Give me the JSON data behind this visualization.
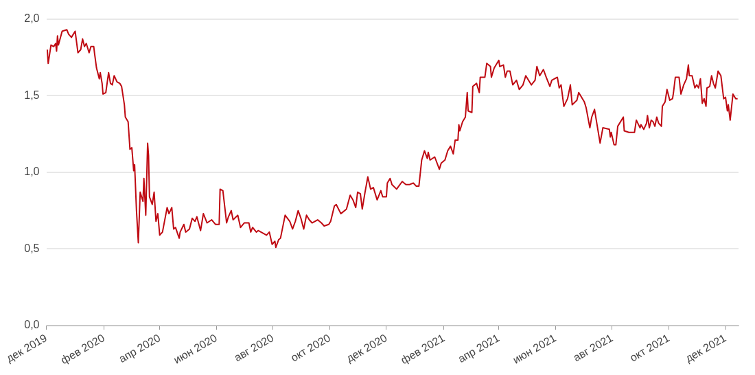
{
  "chart_data": {
    "type": "line",
    "xlim": [
      "2019-12-01",
      "2021-12-15"
    ],
    "xticks": [
      {
        "value": "2019-12-01",
        "label": "дек 2019"
      },
      {
        "value": "2020-02-01",
        "label": "фев 2020"
      },
      {
        "value": "2020-04-01",
        "label": "апр 2020"
      },
      {
        "value": "2020-06-01",
        "label": "июн 2020"
      },
      {
        "value": "2020-08-01",
        "label": "авг 2020"
      },
      {
        "value": "2020-10-01",
        "label": "окт 2020"
      },
      {
        "value": "2020-12-01",
        "label": "дек 2020"
      },
      {
        "value": "2021-02-01",
        "label": "фев 2021"
      },
      {
        "value": "2021-04-01",
        "label": "апр 2021"
      },
      {
        "value": "2021-06-01",
        "label": "июн 2021"
      },
      {
        "value": "2021-08-01",
        "label": "авг 2021"
      },
      {
        "value": "2021-10-01",
        "label": "окт 2021"
      },
      {
        "value": "2021-12-01",
        "label": "дек 2021"
      }
    ],
    "ylim": [
      0,
      2
    ],
    "yticks": [
      {
        "value": 0,
        "label": "0,0"
      },
      {
        "value": 0.5,
        "label": "0,5"
      },
      {
        "value": 1,
        "label": "1,0"
      },
      {
        "value": 1.5,
        "label": "1,5"
      },
      {
        "value": 2,
        "label": "2,0"
      }
    ],
    "grid": "y",
    "legend": false,
    "marker": "none",
    "line_style": "solid",
    "x": [
      "2019-12-02",
      "2019-12-03",
      "2019-12-06",
      "2019-12-09",
      "2019-12-11",
      "2019-12-12",
      "2019-12-13",
      "2019-12-14",
      "2019-12-18",
      "2019-12-23",
      "2019-12-25",
      "2019-12-28",
      "2020-01-01",
      "2020-01-04",
      "2020-01-07",
      "2020-01-09",
      "2020-01-11",
      "2020-01-13",
      "2020-01-16",
      "2020-01-18",
      "2020-01-21",
      "2020-01-22",
      "2020-01-24",
      "2020-01-27",
      "2020-01-28",
      "2020-01-30",
      "2020-01-31",
      "2020-02-03",
      "2020-02-06",
      "2020-02-08",
      "2020-02-10",
      "2020-02-12",
      "2020-02-15",
      "2020-02-18",
      "2020-02-20",
      "2020-02-23",
      "2020-02-24",
      "2020-02-27",
      "2020-02-29",
      "2020-03-02",
      "2020-03-04",
      "2020-03-05",
      "2020-03-07",
      "2020-03-09",
      "2020-03-11",
      "2020-03-14",
      "2020-03-15",
      "2020-03-17",
      "2020-03-19",
      "2020-03-20",
      "2020-03-21",
      "2020-03-24",
      "2020-03-26",
      "2020-03-28",
      "2020-03-30",
      "2020-04-01",
      "2020-04-04",
      "2020-04-09",
      "2020-04-11",
      "2020-04-14",
      "2020-04-16",
      "2020-04-18",
      "2020-04-22",
      "2020-04-23",
      "2020-04-27",
      "2020-04-29",
      "2020-05-03",
      "2020-05-06",
      "2020-05-09",
      "2020-05-11",
      "2020-05-15",
      "2020-05-18",
      "2020-05-22",
      "2020-05-27",
      "2020-05-31",
      "2020-06-04",
      "2020-06-05",
      "2020-06-08",
      "2020-06-12",
      "2020-06-14",
      "2020-06-17",
      "2020-06-19",
      "2020-06-24",
      "2020-06-27",
      "2020-07-01",
      "2020-07-06",
      "2020-07-08",
      "2020-07-10",
      "2020-07-14",
      "2020-07-16",
      "2020-07-22",
      "2020-07-25",
      "2020-07-28",
      "2020-07-31",
      "2020-08-03",
      "2020-08-04",
      "2020-08-07",
      "2020-08-09",
      "2020-08-14",
      "2020-08-19",
      "2020-08-22",
      "2020-08-25",
      "2020-08-28",
      "2020-08-31",
      "2020-09-03",
      "2020-09-06",
      "2020-09-09",
      "2020-09-12",
      "2020-09-18",
      "2020-09-22",
      "2020-09-25",
      "2020-09-30",
      "2020-10-02",
      "2020-10-06",
      "2020-10-08",
      "2020-10-13",
      "2020-10-19",
      "2020-10-23",
      "2020-10-26",
      "2020-10-29",
      "2020-10-31",
      "2020-11-03",
      "2020-11-05",
      "2020-11-08",
      "2020-11-11",
      "2020-11-14",
      "2020-11-17",
      "2020-11-21",
      "2020-11-25",
      "2020-11-27",
      "2020-12-01",
      "2020-12-02",
      "2020-12-05",
      "2020-12-07",
      "2020-12-12",
      "2020-12-18",
      "2020-12-22",
      "2020-12-26",
      "2020-12-30",
      "2021-01-02",
      "2021-01-05",
      "2021-01-08",
      "2021-01-11",
      "2021-01-14",
      "2021-01-15",
      "2021-01-17",
      "2021-01-22",
      "2021-01-27",
      "2021-01-29",
      "2021-02-02",
      "2021-02-05",
      "2021-02-08",
      "2021-02-11",
      "2021-02-13",
      "2021-02-16",
      "2021-02-17",
      "2021-02-18",
      "2021-02-21",
      "2021-02-24",
      "2021-02-26",
      "2021-02-27",
      "2021-03-03",
      "2021-03-04",
      "2021-03-08",
      "2021-03-11",
      "2021-03-12",
      "2021-03-17",
      "2021-03-19",
      "2021-03-23",
      "2021-03-24",
      "2021-03-27",
      "2021-03-30",
      "2021-04-01",
      "2021-04-02",
      "2021-04-06",
      "2021-04-08",
      "2021-04-10",
      "2021-04-13",
      "2021-04-16",
      "2021-04-20",
      "2021-04-23",
      "2021-04-27",
      "2021-04-30",
      "2021-05-06",
      "2021-05-10",
      "2021-05-12",
      "2021-05-15",
      "2021-05-19",
      "2021-05-22",
      "2021-05-26",
      "2021-05-28",
      "2021-06-03",
      "2021-06-05",
      "2021-06-07",
      "2021-06-10",
      "2021-06-14",
      "2021-06-17",
      "2021-06-19",
      "2021-06-24",
      "2021-06-26",
      "2021-07-02",
      "2021-07-04",
      "2021-07-08",
      "2021-07-10",
      "2021-07-13",
      "2021-07-16",
      "2021-07-19",
      "2021-07-22",
      "2021-07-29",
      "2021-07-30",
      "2021-07-31",
      "2021-08-03",
      "2021-08-05",
      "2021-08-07",
      "2021-08-10",
      "2021-08-13",
      "2021-08-14",
      "2021-08-19",
      "2021-08-22",
      "2021-08-25",
      "2021-08-27",
      "2021-08-31",
      "2021-09-01",
      "2021-09-04",
      "2021-09-07",
      "2021-09-08",
      "2021-09-10",
      "2021-09-12",
      "2021-09-14",
      "2021-09-16",
      "2021-09-18",
      "2021-09-20",
      "2021-09-23",
      "2021-09-24",
      "2021-09-27",
      "2021-09-29",
      "2021-10-02",
      "2021-10-05",
      "2021-10-06",
      "2021-10-08",
      "2021-10-12",
      "2021-10-14",
      "2021-10-17",
      "2021-10-20",
      "2021-10-22",
      "2021-10-23",
      "2021-10-26",
      "2021-10-29",
      "2021-10-31",
      "2021-11-02",
      "2021-11-04",
      "2021-11-06",
      "2021-11-08",
      "2021-11-10",
      "2021-11-11",
      "2021-11-14",
      "2021-11-16",
      "2021-11-18",
      "2021-11-20",
      "2021-11-23",
      "2021-11-26",
      "2021-11-29",
      "2021-12-01",
      "2021-12-03",
      "2021-12-04",
      "2021-12-06",
      "2021-12-09",
      "2021-12-12",
      "2021-12-14"
    ],
    "series": [
      {
        "color": "#bf0a12",
        "values": [
          1.8,
          1.71,
          1.83,
          1.82,
          1.84,
          1.79,
          1.89,
          1.83,
          1.92,
          1.93,
          1.9,
          1.88,
          1.92,
          1.78,
          1.8,
          1.87,
          1.82,
          1.84,
          1.78,
          1.82,
          1.82,
          1.77,
          1.68,
          1.61,
          1.65,
          1.58,
          1.51,
          1.52,
          1.65,
          1.58,
          1.57,
          1.63,
          1.59,
          1.58,
          1.56,
          1.44,
          1.36,
          1.33,
          1.15,
          1.16,
          1.01,
          1.05,
          0.75,
          0.54,
          0.87,
          0.81,
          0.96,
          0.72,
          1.19,
          1.11,
          0.84,
          0.79,
          0.87,
          0.68,
          0.73,
          0.59,
          0.61,
          0.77,
          0.73,
          0.77,
          0.63,
          0.64,
          0.57,
          0.61,
          0.66,
          0.61,
          0.63,
          0.7,
          0.68,
          0.71,
          0.62,
          0.73,
          0.67,
          0.69,
          0.66,
          0.66,
          0.89,
          0.88,
          0.67,
          0.71,
          0.75,
          0.69,
          0.72,
          0.64,
          0.67,
          0.67,
          0.61,
          0.64,
          0.61,
          0.62,
          0.6,
          0.59,
          0.61,
          0.53,
          0.55,
          0.51,
          0.56,
          0.57,
          0.72,
          0.68,
          0.63,
          0.68,
          0.75,
          0.7,
          0.63,
          0.72,
          0.69,
          0.67,
          0.69,
          0.67,
          0.65,
          0.66,
          0.68,
          0.78,
          0.79,
          0.73,
          0.76,
          0.85,
          0.82,
          0.77,
          0.87,
          0.86,
          0.76,
          0.87,
          0.97,
          0.89,
          0.9,
          0.82,
          0.88,
          0.84,
          0.84,
          0.93,
          0.96,
          0.92,
          0.89,
          0.94,
          0.92,
          0.92,
          0.93,
          0.91,
          0.91,
          1.08,
          1.14,
          1.09,
          1.13,
          1.08,
          1.1,
          1.02,
          1.06,
          1.08,
          1.14,
          1.17,
          1.12,
          1.21,
          1.21,
          1.31,
          1.27,
          1.33,
          1.36,
          1.52,
          1.4,
          1.39,
          1.56,
          1.58,
          1.52,
          1.62,
          1.62,
          1.71,
          1.69,
          1.62,
          1.68,
          1.71,
          1.73,
          1.69,
          1.7,
          1.62,
          1.66,
          1.66,
          1.57,
          1.6,
          1.54,
          1.57,
          1.63,
          1.57,
          1.6,
          1.69,
          1.63,
          1.67,
          1.62,
          1.56,
          1.6,
          1.62,
          1.55,
          1.57,
          1.43,
          1.48,
          1.57,
          1.44,
          1.47,
          1.52,
          1.46,
          1.42,
          1.29,
          1.36,
          1.41,
          1.3,
          1.19,
          1.29,
          1.28,
          1.23,
          1.26,
          1.18,
          1.18,
          1.3,
          1.33,
          1.36,
          1.27,
          1.26,
          1.26,
          1.26,
          1.34,
          1.29,
          1.31,
          1.28,
          1.32,
          1.37,
          1.29,
          1.34,
          1.33,
          1.3,
          1.36,
          1.32,
          1.3,
          1.43,
          1.46,
          1.54,
          1.47,
          1.48,
          1.52,
          1.62,
          1.62,
          1.51,
          1.57,
          1.61,
          1.7,
          1.63,
          1.63,
          1.55,
          1.57,
          1.55,
          1.61,
          1.45,
          1.48,
          1.43,
          1.55,
          1.56,
          1.63,
          1.58,
          1.55,
          1.66,
          1.63,
          1.48,
          1.49,
          1.4,
          1.44,
          1.34,
          1.51,
          1.48,
          1.48
        ]
      }
    ]
  }
}
